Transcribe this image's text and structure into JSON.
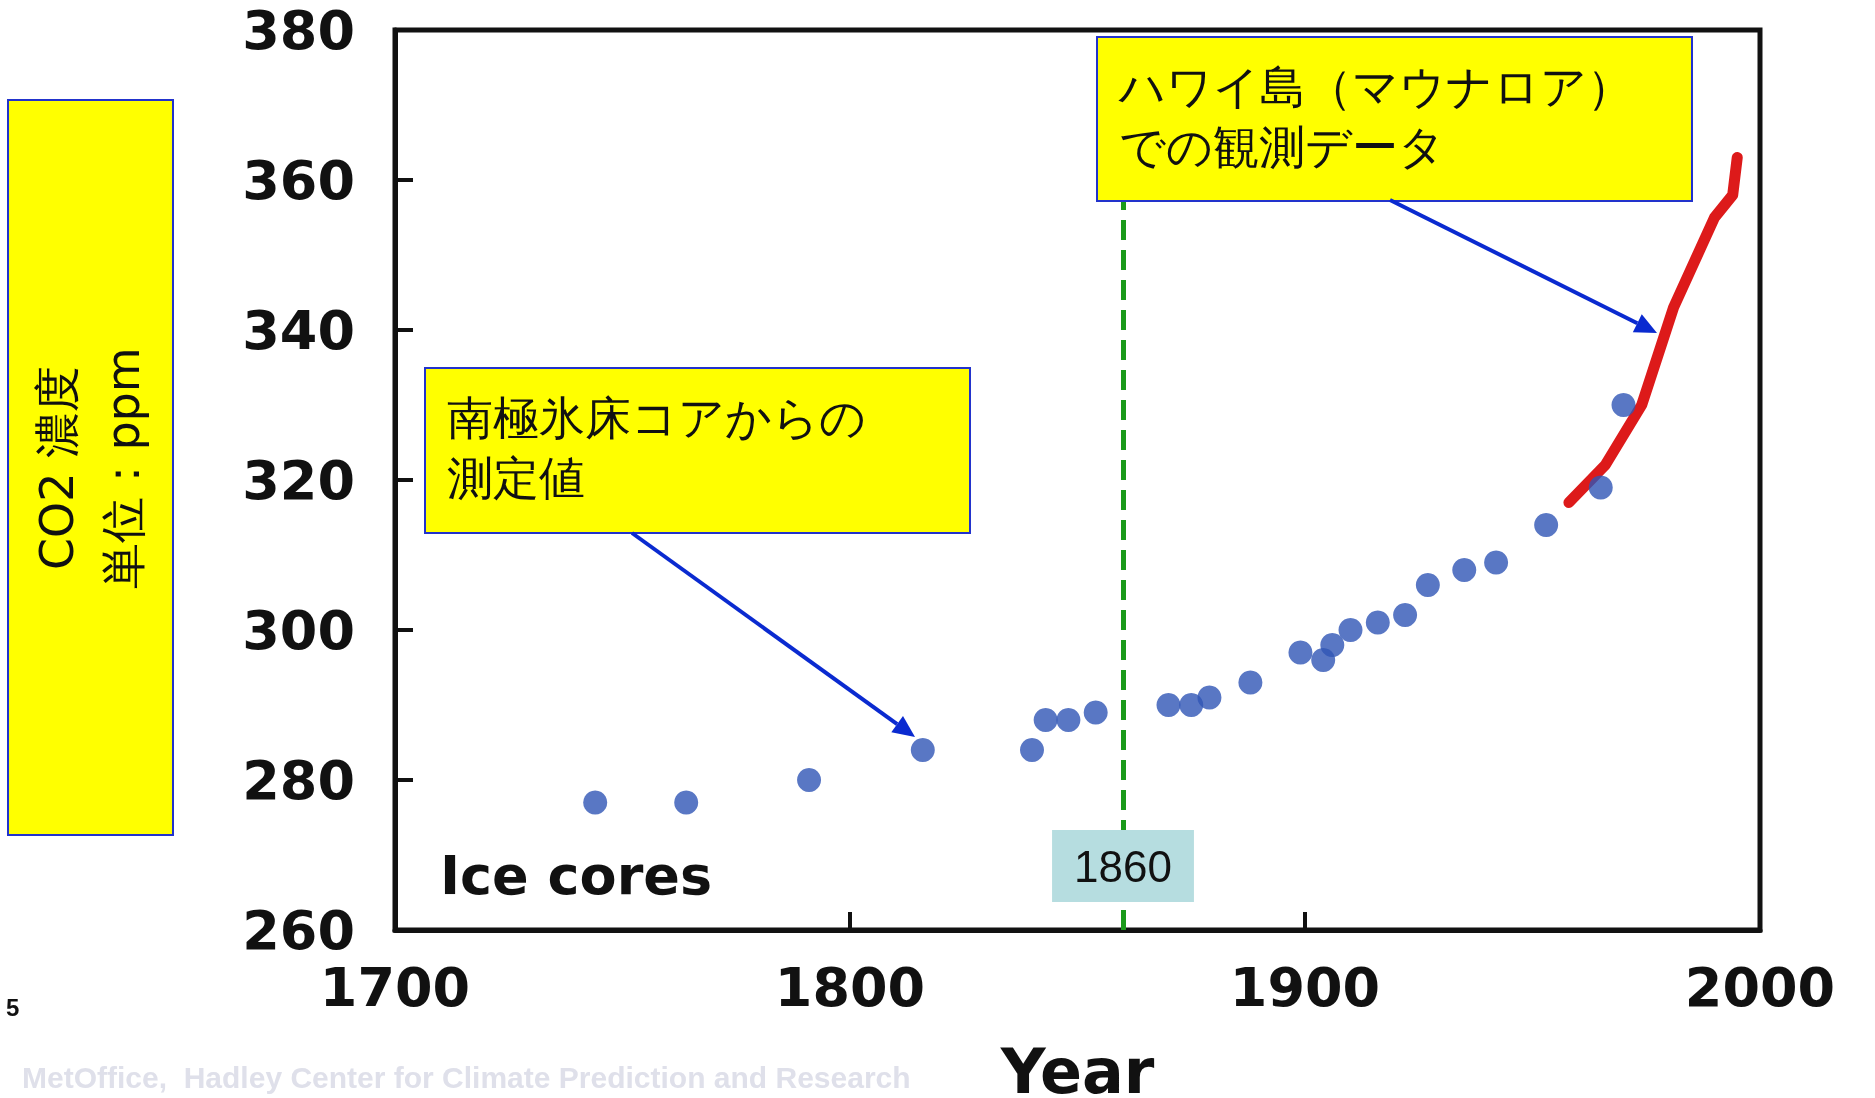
{
  "chart_data": {
    "type": "scatter",
    "xlabel": "Year",
    "ylabel": "CO2 濃度単位：ppm",
    "xlim": [
      1700,
      2000
    ],
    "xticks": [
      1700,
      1800,
      1900,
      2000
    ],
    "ylim": [
      260,
      380
    ],
    "yticks": [
      260,
      280,
      300,
      320,
      340,
      360,
      380
    ],
    "grid": false,
    "marker": "circle",
    "series": [
      {
        "color": "#2f55b5",
        "x": [
          1744,
          1764,
          1791,
          1816,
          1840,
          1843,
          1848,
          1854,
          1870,
          1875,
          1879,
          1888,
          1899,
          1904,
          1906,
          1910,
          1916,
          1922,
          1927,
          1935,
          1942,
          1953,
          1965,
          1970
        ],
        "values": [
          277,
          277,
          280,
          284,
          284,
          288,
          288,
          289,
          290,
          290,
          291,
          293,
          297,
          296,
          298,
          300,
          301,
          302,
          306,
          308,
          309,
          314,
          319,
          330
        ]
      },
      {
        "type": "line",
        "color": "#dd1a1a",
        "marker": "none",
        "x": [
          1958,
          1966,
          1974,
          1981,
          1987,
          1990,
          1994,
          1995
        ],
        "values": [
          317,
          322,
          330,
          343,
          351,
          355,
          358,
          363
        ]
      }
    ],
    "ref_lines": [
      {
        "axis": "x",
        "value": 1860,
        "label": "1860",
        "color": "#1a9a1a",
        "line_style": "dashed"
      }
    ],
    "annotations": [
      "南極氷床コアからの測定値",
      "ハワイ島（マウナロア）での観測データ",
      "Ice cores",
      "5",
      "MetOffice,  Hadley Center for Climate Prediction and Research"
    ]
  }
}
